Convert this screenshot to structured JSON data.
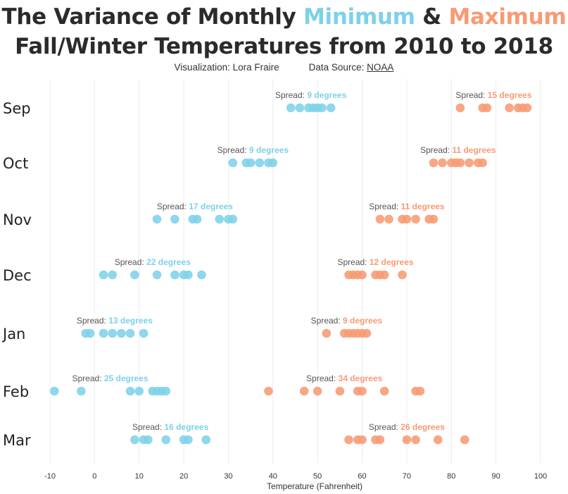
{
  "header": {
    "title_part1": "The Variance of Monthly ",
    "title_min": "Minimum",
    "title_amp": " & ",
    "title_max": "Maximum",
    "title_line2": "Fall/Winter Temperatures from 2010 to 2018",
    "credit_viz": "Visualization: Lora Fraire",
    "credit_source_label": "Data Source: ",
    "credit_source": "NOAA"
  },
  "chart_data": {
    "type": "scatter",
    "xlabel": "Temperature (Fahrenheit)",
    "xlim": [
      -10,
      100
    ],
    "xticks": [
      -10,
      0,
      10,
      20,
      30,
      40,
      50,
      60,
      70,
      80,
      90,
      100
    ],
    "colors": {
      "min": "#7ed1e9",
      "max": "#f79b74"
    },
    "spread_prefix": "Spread: ",
    "months": [
      {
        "month": "Sep",
        "min": [
          44,
          46,
          48,
          49,
          50,
          51,
          53
        ],
        "min_spread": "9 degrees",
        "max": [
          82,
          87,
          88,
          93,
          95,
          96,
          97
        ],
        "max_spread": "15 degrees"
      },
      {
        "month": "Oct",
        "min": [
          31,
          34,
          35,
          37,
          39,
          40
        ],
        "min_spread": "9 degrees",
        "max": [
          76,
          78,
          80,
          81,
          82,
          84,
          86,
          87
        ],
        "max_spread": "11 degrees"
      },
      {
        "month": "Nov",
        "min": [
          14,
          18,
          22,
          23,
          28,
          30,
          31
        ],
        "min_spread": "17 degrees",
        "max": [
          64,
          66,
          69,
          70,
          72,
          75,
          76
        ],
        "max_spread": "11 degrees"
      },
      {
        "month": "Dec",
        "min": [
          2,
          4,
          9,
          14,
          18,
          20,
          21,
          24
        ],
        "min_spread": "22 degrees",
        "max": [
          57,
          58,
          59,
          60,
          63,
          64,
          65,
          69
        ],
        "max_spread": "12 degrees"
      },
      {
        "month": "Jan",
        "min": [
          -2,
          -1,
          2,
          4,
          6,
          8,
          11
        ],
        "min_spread": "13 degrees",
        "max": [
          52,
          56,
          57,
          58,
          59,
          60,
          61
        ],
        "max_spread": "9 degrees"
      },
      {
        "month": "Feb",
        "min": [
          -9,
          -3,
          8,
          10,
          13,
          14,
          15,
          16
        ],
        "min_spread": "25 degrees",
        "max": [
          39,
          47,
          50,
          55,
          59,
          60,
          65,
          72,
          73
        ],
        "max_spread": "34 degrees"
      },
      {
        "month": "Mar",
        "min": [
          9,
          11,
          12,
          16,
          20,
          21,
          25
        ],
        "min_spread": "16 degrees",
        "max": [
          57,
          59,
          60,
          63,
          64,
          70,
          72,
          77,
          83
        ],
        "max_spread": "26 degrees"
      }
    ]
  }
}
